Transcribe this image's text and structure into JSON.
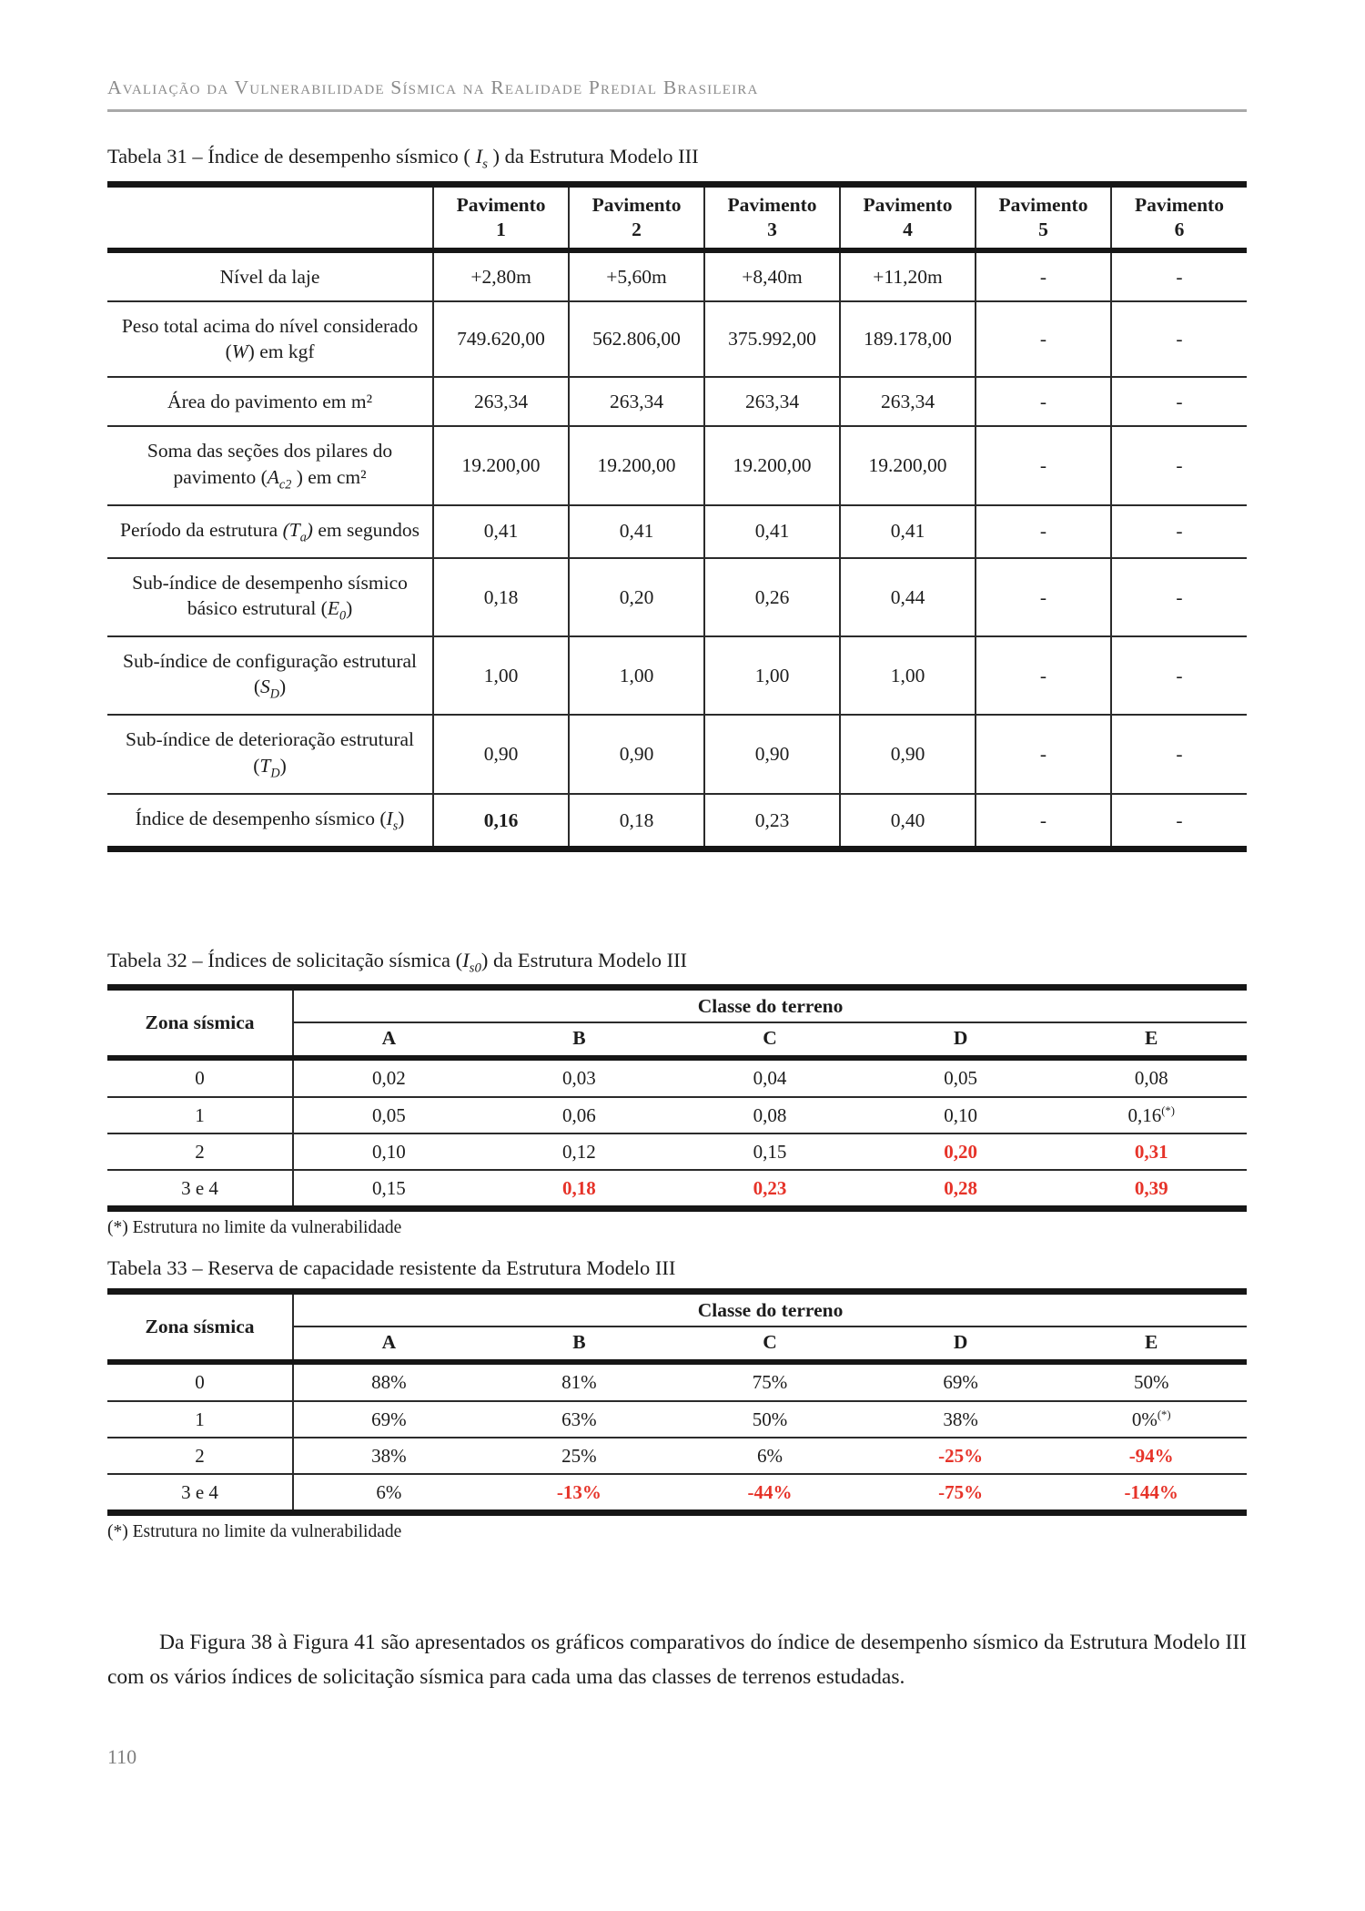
{
  "colors": {
    "highlight_red": "#e63329",
    "running_header_gray": "#8b8b8b",
    "rule_gray": "#a9a9a9",
    "table_bar_black": "#161616",
    "page_number_gray": "#808080"
  },
  "header": {
    "running_title": "Avaliação da Vulnerabilidade Sísmica na Realidade Predial Brasileira"
  },
  "table31": {
    "caption_html": "Tabela 31 – Índice de desempenho sísmico ( <i>I<sub>s</sub></i> ) da Estrutura Modelo III",
    "col_headers": [
      {
        "word": "Pavimento",
        "num": "1"
      },
      {
        "word": "Pavimento",
        "num": "2"
      },
      {
        "word": "Pavimento",
        "num": "3"
      },
      {
        "word": "Pavimento",
        "num": "4"
      },
      {
        "word": "Pavimento",
        "num": "5"
      },
      {
        "word": "Pavimento",
        "num": "6"
      }
    ],
    "rows": [
      {
        "label_html": "Nível da laje",
        "values": [
          "+2,80m",
          "+5,60m",
          "+8,40m",
          "+11,20m",
          "-",
          "-"
        ]
      },
      {
        "label_html": "Peso total acima do nível considerado (<i>W</i>) em kgf",
        "values": [
          "749.620,00",
          "562.806,00",
          "375.992,00",
          "189.178,00",
          "-",
          "-"
        ]
      },
      {
        "label_html": "Área do pavimento em m²",
        "values": [
          "263,34",
          "263,34",
          "263,34",
          "263,34",
          "-",
          "-"
        ]
      },
      {
        "label_html": "Soma das seções dos pilares do pavimento (<i>A<sub>c2</sub></i> ) em cm²",
        "values": [
          "19.200,00",
          "19.200,00",
          "19.200,00",
          "19.200,00",
          "-",
          "-"
        ]
      },
      {
        "label_html": "Período da estrutura <i>(T<sub>a</sub>)</i> em segundos",
        "values": [
          "0,41",
          "0,41",
          "0,41",
          "0,41",
          "-",
          "-"
        ]
      },
      {
        "label_html": "Sub-índice de desempenho sísmico básico estrutural (<i>E<sub>0</sub></i>)",
        "values": [
          "0,18",
          "0,20",
          "0,26",
          "0,44",
          "-",
          "-"
        ]
      },
      {
        "label_html": "Sub-índice de configuração estrutural (<i>S<sub>D</sub></i>)",
        "values": [
          "1,00",
          "1,00",
          "1,00",
          "1,00",
          "-",
          "-"
        ]
      },
      {
        "label_html": "Sub-índice de deterioração estrutural (<i>T<sub>D</sub></i>)",
        "values": [
          "0,90",
          "0,90",
          "0,90",
          "0,90",
          "-",
          "-"
        ]
      },
      {
        "label_html": "Índice de desempenho sísmico (<i>I<sub>s</sub></i>)",
        "values": [
          "0,16",
          "0,18",
          "0,23",
          "0,40",
          "-",
          "-"
        ]
      }
    ]
  },
  "table32": {
    "caption_html": "Tabela 32 – Índices de solicitação sísmica (<i>I<sub>s0</sub></i>) da Estrutura Modelo III",
    "zona_header": "Zona sísmica",
    "classe_header": "Classe do terreno",
    "class_labels": [
      "A",
      "B",
      "C",
      "D",
      "E"
    ],
    "rows": [
      {
        "zona": "0",
        "values_html": [
          "0,02",
          "0,03",
          "0,04",
          "0,05",
          "0,08"
        ]
      },
      {
        "zona": "1",
        "values_html": [
          "0,05",
          "0,06",
          "0,08",
          "0,10",
          "0,16<sup>(*)</sup>"
        ]
      },
      {
        "zona": "2",
        "values_html": [
          "0,10",
          "0,12",
          "0,15",
          "0,20",
          "0,31"
        ]
      },
      {
        "zona": "3 e 4",
        "values_html": [
          "0,15",
          "0,18",
          "0,23",
          "0,28",
          "0,39"
        ]
      }
    ],
    "footnote": "(*) Estrutura no limite da vulnerabilidade"
  },
  "table33": {
    "caption_html": "Tabela 33 – Reserva de capacidade resistente da Estrutura Modelo III",
    "zona_header": "Zona sísmica",
    "classe_header": "Classe do terreno",
    "class_labels": [
      "A",
      "B",
      "C",
      "D",
      "E"
    ],
    "rows": [
      {
        "zona": "0",
        "values_html": [
          "88%",
          "81%",
          "75%",
          "69%",
          "50%"
        ]
      },
      {
        "zona": "1",
        "values_html": [
          "69%",
          "63%",
          "50%",
          "38%",
          "0%<sup>(*)</sup>"
        ]
      },
      {
        "zona": "2",
        "values_html": [
          "38%",
          "25%",
          "6%",
          "-25%",
          "-94%"
        ]
      },
      {
        "zona": "3 e 4",
        "values_html": [
          "6%",
          "-13%",
          "-44%",
          "-75%",
          "-144%"
        ]
      }
    ],
    "footnote": "(*) Estrutura no limite da vulnerabilidade"
  },
  "paragraph": "Da Figura 38 à Figura 41 são apresentados os gráficos comparativos do índice de desempenho sísmico da Estrutura Modelo III com os vários índices de solicitação sísmica para cada uma das classes de terrenos estudadas.",
  "page_number": "110"
}
